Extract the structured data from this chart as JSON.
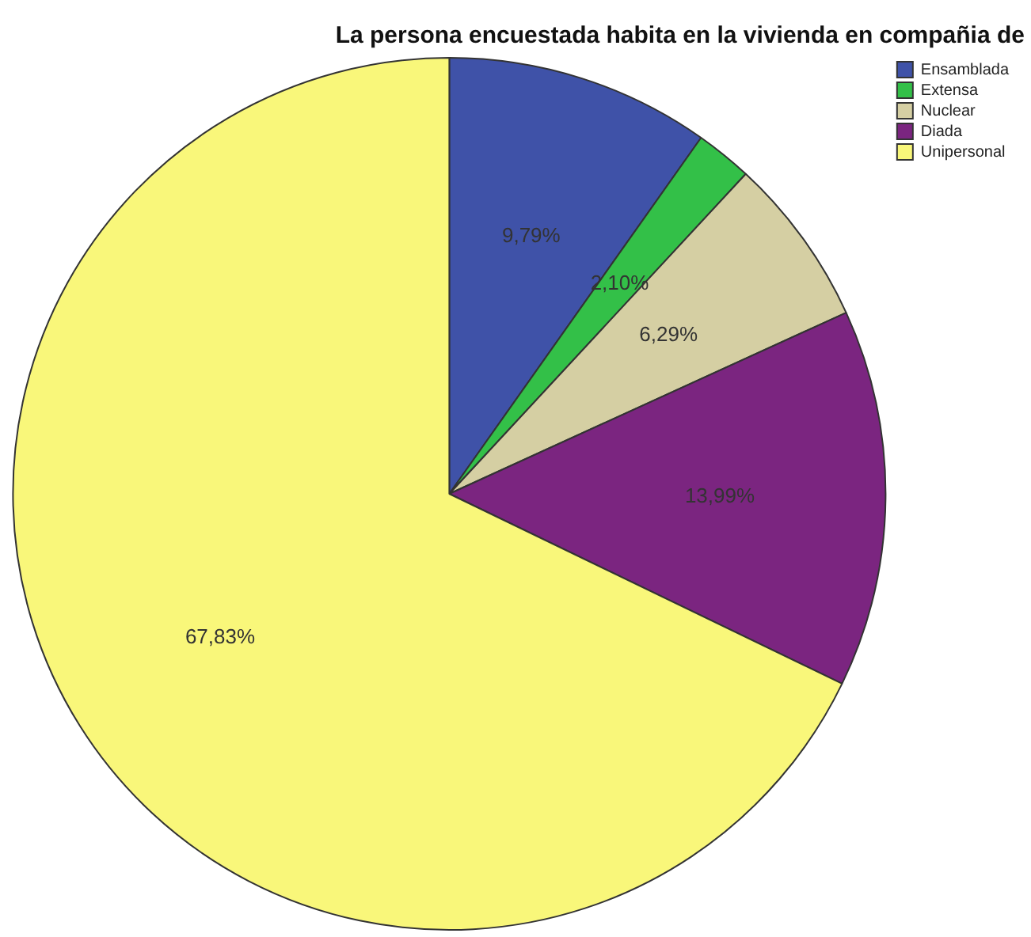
{
  "chart_data": {
    "type": "pie",
    "title": "La persona encuestada habita en la vivienda en compañia de",
    "categories": [
      "Ensamblada",
      "Extensa",
      "Nuclear",
      "Diada",
      "Unipersonal"
    ],
    "values": [
      9.79,
      2.1,
      6.29,
      13.99,
      67.83
    ],
    "value_labels": [
      "9,79%",
      "2,10%",
      "6,29%",
      "13,99%",
      "67,83%"
    ],
    "colors": [
      "#3f52a8",
      "#33c048",
      "#d5cfa3",
      "#7b2580",
      "#f9f77a"
    ],
    "legend": "top right"
  }
}
